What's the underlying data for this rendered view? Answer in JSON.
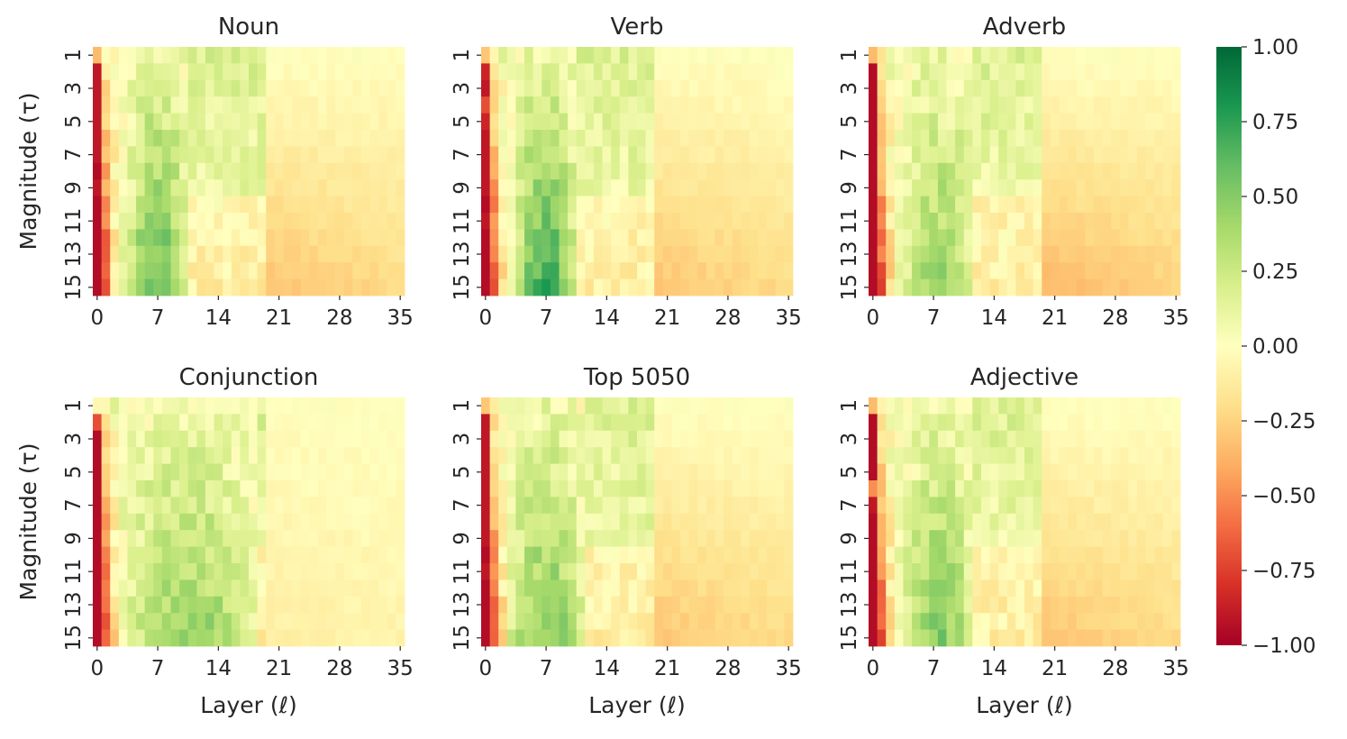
{
  "chart_data": [
    {
      "type": "heatmap",
      "title": "Noun",
      "xlabel": "",
      "ylabel": "Magnitude (τ)",
      "x_ticklabels": [
        "0",
        "7",
        "14",
        "21",
        "28",
        "35"
      ],
      "y_ticklabels": [
        "1",
        "3",
        "5",
        "7",
        "9",
        "11",
        "13",
        "15"
      ],
      "profile": {
        "layer0": [
          -0.35,
          -0.9,
          -0.9,
          -0.9,
          -0.9,
          -0.9,
          -0.9,
          -0.95,
          -0.9,
          -0.95,
          -0.95,
          -0.95,
          -0.95,
          -0.95,
          -0.95
        ],
        "peak_layers": [
          4,
          10
        ],
        "peak_magnitude": 0.6,
        "late_negative": -0.3
      }
    },
    {
      "type": "heatmap",
      "title": "Verb",
      "xlabel": "",
      "ylabel": "",
      "x_ticklabels": [
        "0",
        "7",
        "14",
        "21",
        "28",
        "35"
      ],
      "y_ticklabels": [
        "1",
        "3",
        "5",
        "7",
        "9",
        "11",
        "13",
        "15"
      ],
      "profile": {
        "layer0": [
          -0.3,
          -0.85,
          -0.9,
          -0.7,
          -0.85,
          -0.9,
          -0.9,
          -0.9,
          -0.9,
          -0.95,
          -0.9,
          -0.95,
          -0.95,
          -0.95,
          -0.95
        ],
        "peak_layers": [
          4,
          10
        ],
        "peak_magnitude": 0.7,
        "late_negative": -0.3
      }
    },
    {
      "type": "heatmap",
      "title": "Adverb",
      "xlabel": "",
      "ylabel": "",
      "x_ticklabels": [
        "0",
        "7",
        "14",
        "21",
        "28",
        "35"
      ],
      "y_ticklabels": [
        "1",
        "3",
        "5",
        "7",
        "9",
        "11",
        "13",
        "15"
      ],
      "profile": {
        "layer0": [
          -0.35,
          -0.95,
          -0.95,
          -0.95,
          -0.95,
          -0.95,
          -0.95,
          -0.95,
          -0.95,
          -0.95,
          -0.95,
          -0.95,
          -0.95,
          -0.95,
          -0.95
        ],
        "peak_layers": [
          4,
          11
        ],
        "peak_magnitude": 0.45,
        "late_negative": -0.35
      }
    },
    {
      "type": "heatmap",
      "title": "Conjunction",
      "xlabel": "Layer (ℓ)",
      "ylabel": "Magnitude (τ)",
      "x_ticklabels": [
        "0",
        "7",
        "14",
        "21",
        "28",
        "35"
      ],
      "y_ticklabels": [
        "1",
        "3",
        "5",
        "7",
        "9",
        "11",
        "13",
        "15"
      ],
      "profile": {
        "layer0": [
          -0.05,
          -0.7,
          -0.95,
          -0.95,
          -0.95,
          -0.95,
          -0.95,
          -0.95,
          -0.95,
          -0.95,
          -0.95,
          -0.95,
          -0.95,
          -0.95,
          -0.95
        ],
        "peak_layers": [
          3,
          18
        ],
        "peak_magnitude": 0.45,
        "late_negative": -0.1
      }
    },
    {
      "type": "heatmap",
      "title": "Top 5050",
      "xlabel": "Layer (ℓ)",
      "ylabel": "",
      "x_ticklabels": [
        "0",
        "7",
        "14",
        "21",
        "28",
        "35"
      ],
      "y_ticklabels": [
        "1",
        "3",
        "5",
        "7",
        "9",
        "11",
        "13",
        "15"
      ],
      "profile": {
        "layer0": [
          -0.3,
          -0.9,
          -0.9,
          -0.9,
          -0.9,
          -0.9,
          -0.9,
          -0.9,
          -0.9,
          -0.95,
          -0.9,
          -0.95,
          -0.95,
          -0.95,
          -0.95
        ],
        "peak_layers": [
          3,
          11
        ],
        "peak_magnitude": 0.5,
        "late_negative": -0.3
      }
    },
    {
      "type": "heatmap",
      "title": "Adjective",
      "xlabel": "Layer (ℓ)",
      "ylabel": "",
      "x_ticklabels": [
        "0",
        "7",
        "14",
        "21",
        "28",
        "35"
      ],
      "y_ticklabels": [
        "1",
        "3",
        "5",
        "7",
        "9",
        "11",
        "13",
        "15"
      ],
      "profile": {
        "layer0": [
          -0.35,
          -0.95,
          -0.95,
          -0.95,
          -0.95,
          -0.5,
          -0.9,
          -0.95,
          -0.95,
          -0.95,
          -0.95,
          -0.95,
          -0.95,
          -0.95,
          -0.95
        ],
        "peak_layers": [
          4,
          11
        ],
        "peak_magnitude": 0.5,
        "late_negative": -0.3
      }
    }
  ],
  "colorbar": {
    "colormap": "RdYlGn",
    "vmin": -1.0,
    "vmax": 1.0,
    "ticklabels": [
      "1.00",
      "0.75",
      "0.50",
      "0.25",
      "0.00",
      "−0.25",
      "−0.50",
      "−0.75",
      "−1.00"
    ],
    "colors": [
      "#a50026",
      "#d73027",
      "#f46d43",
      "#fdae61",
      "#fee08b",
      "#ffffbf",
      "#d9ef8b",
      "#a6d96a",
      "#66bd63",
      "#1a9850",
      "#006837"
    ]
  },
  "grid": {
    "layers": 36,
    "magnitudes": 15
  }
}
